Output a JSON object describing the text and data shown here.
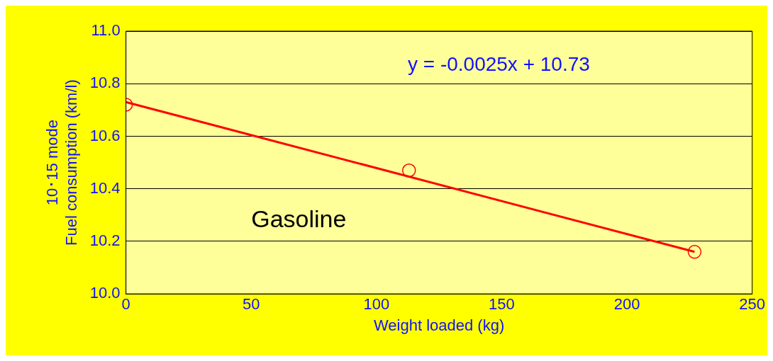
{
  "chart_data": {
    "type": "scatter",
    "xlabel": "Weight loaded (kg)",
    "ylabel": "10･15 mode\nFuel consumption (km/l)",
    "xlim": [
      0,
      250
    ],
    "xticks": [
      0,
      50,
      100,
      150,
      200,
      250
    ],
    "ylim": [
      10.0,
      11.0
    ],
    "yticks": [
      {
        "value": 10.0,
        "label": "10.0"
      },
      {
        "value": 10.2,
        "label": "10.2"
      },
      {
        "value": 10.4,
        "label": "10.4"
      },
      {
        "value": 10.6,
        "label": "10.6"
      },
      {
        "value": 10.8,
        "label": "10.8"
      },
      {
        "value": 11.0,
        "label": "11.0"
      }
    ],
    "grid": "y",
    "legend": false,
    "marker": "circle",
    "series": [
      {
        "type": "scatter",
        "color": "#ff0000",
        "x": [
          0,
          113,
          227
        ],
        "values": [
          10.72,
          10.47,
          10.16
        ]
      },
      {
        "type": "line",
        "color": "#ff0000",
        "x": [
          0,
          227
        ],
        "values": [
          10.73,
          10.16
        ],
        "marker": "none",
        "line_style": "solid"
      }
    ],
    "annotations": [
      "y = -0.0025x + 10.73",
      "Gasoline"
    ]
  }
}
